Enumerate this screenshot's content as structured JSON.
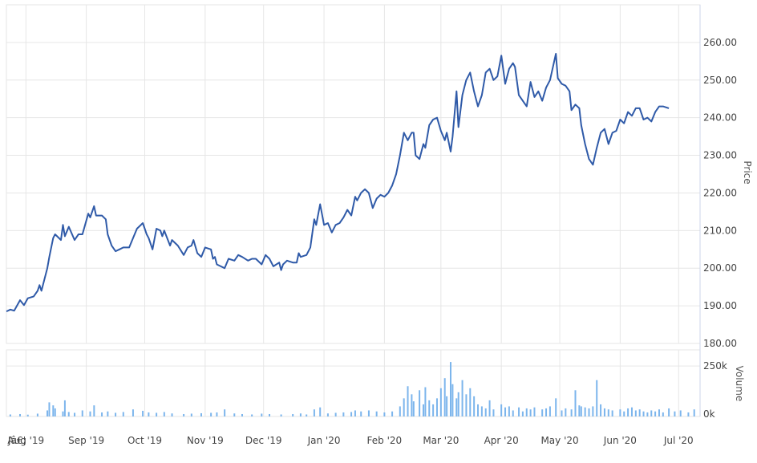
{
  "chart_data": {
    "type": "line",
    "price_axis": {
      "label": "Price",
      "ylim": [
        180,
        270
      ],
      "ticks": [
        180,
        190,
        200,
        210,
        220,
        230,
        240,
        250,
        260
      ],
      "tick_labels": [
        "180.00",
        "190.00",
        "200.00",
        "210.00",
        "220.00",
        "230.00",
        "240.00",
        "250.00",
        "260.00"
      ]
    },
    "volume_axis": {
      "label": "Volume",
      "ylim": [
        0,
        330000
      ],
      "ticks": [
        0,
        250000
      ],
      "tick_labels": [
        "0k",
        "250k"
      ]
    },
    "x_axis": {
      "range": [
        "2019-07-22",
        "2020-07-12"
      ],
      "ticks": [
        {
          "label": "Jâ€¦",
          "date": "2019-07-22"
        },
        {
          "label": "Aug '19",
          "date": "2019-08-01"
        },
        {
          "label": "Sep '19",
          "date": "2019-09-01"
        },
        {
          "label": "Oct '19",
          "date": "2019-10-01"
        },
        {
          "label": "Nov '19",
          "date": "2019-11-01"
        },
        {
          "label": "Dec '19",
          "date": "2019-12-01"
        },
        {
          "label": "Jan '20",
          "date": "2020-01-01"
        },
        {
          "label": "Feb '20",
          "date": "2020-02-01"
        },
        {
          "label": "Mar '20",
          "date": "2020-03-01"
        },
        {
          "label": "Apr '20",
          "date": "2020-04-01"
        },
        {
          "label": "May '20",
          "date": "2020-05-01"
        },
        {
          "label": "Jun '20",
          "date": "2020-06-01"
        },
        {
          "label": "Jul '20",
          "date": "2020-07-01"
        }
      ]
    },
    "grid": true,
    "line_color": "#2f5aa8",
    "volume_color": "#7cb5ec",
    "price_series": [
      [
        "2019-07-22",
        188.5
      ],
      [
        "2019-07-24",
        189
      ],
      [
        "2019-07-26",
        188.7
      ],
      [
        "2019-07-29",
        191.5
      ],
      [
        "2019-07-31",
        190.2
      ],
      [
        "2019-08-02",
        192
      ],
      [
        "2019-08-05",
        192.5
      ],
      [
        "2019-08-07",
        194
      ],
      [
        "2019-08-08",
        195.5
      ],
      [
        "2019-08-09",
        194
      ],
      [
        "2019-08-12",
        200
      ],
      [
        "2019-08-13",
        203
      ],
      [
        "2019-08-15",
        208
      ],
      [
        "2019-08-16",
        209
      ],
      [
        "2019-08-19",
        207.5
      ],
      [
        "2019-08-20",
        211.5
      ],
      [
        "2019-08-21",
        208.5
      ],
      [
        "2019-08-23",
        211
      ],
      [
        "2019-08-26",
        207.5
      ],
      [
        "2019-08-28",
        209
      ],
      [
        "2019-08-30",
        209
      ],
      [
        "2019-09-02",
        214.5
      ],
      [
        "2019-09-03",
        213.5
      ],
      [
        "2019-09-05",
        216.5
      ],
      [
        "2019-09-06",
        214
      ],
      [
        "2019-09-09",
        214
      ],
      [
        "2019-09-11",
        213
      ],
      [
        "2019-09-12",
        209
      ],
      [
        "2019-09-14",
        206
      ],
      [
        "2019-09-16",
        204.5
      ],
      [
        "2019-09-18",
        205
      ],
      [
        "2019-09-20",
        205.5
      ],
      [
        "2019-09-23",
        205.5
      ],
      [
        "2019-09-25",
        208
      ],
      [
        "2019-09-27",
        210.5
      ],
      [
        "2019-09-30",
        212
      ],
      [
        "2019-10-02",
        209
      ],
      [
        "2019-10-03",
        208
      ],
      [
        "2019-10-05",
        205
      ],
      [
        "2019-10-07",
        210.5
      ],
      [
        "2019-10-09",
        210
      ],
      [
        "2019-10-10",
        208.5
      ],
      [
        "2019-10-11",
        210
      ],
      [
        "2019-10-14",
        206
      ],
      [
        "2019-10-15",
        207.5
      ],
      [
        "2019-10-18",
        206
      ],
      [
        "2019-10-21",
        203.5
      ],
      [
        "2019-10-23",
        205.5
      ],
      [
        "2019-10-25",
        206
      ],
      [
        "2019-10-26",
        207.5
      ],
      [
        "2019-10-28",
        204
      ],
      [
        "2019-10-30",
        203
      ],
      [
        "2019-11-01",
        205.5
      ],
      [
        "2019-11-04",
        205
      ],
      [
        "2019-11-05",
        202.5
      ],
      [
        "2019-11-06",
        203
      ],
      [
        "2019-11-07",
        201
      ],
      [
        "2019-11-09",
        200.5
      ],
      [
        "2019-11-11",
        200
      ],
      [
        "2019-11-13",
        202.5
      ],
      [
        "2019-11-16",
        202
      ],
      [
        "2019-11-18",
        203.5
      ],
      [
        "2019-11-20",
        203
      ],
      [
        "2019-11-23",
        202
      ],
      [
        "2019-11-25",
        202.5
      ],
      [
        "2019-11-27",
        202.5
      ],
      [
        "2019-11-30",
        201
      ],
      [
        "2019-12-02",
        203.5
      ],
      [
        "2019-12-04",
        202.5
      ],
      [
        "2019-12-06",
        200.5
      ],
      [
        "2019-12-09",
        201.5
      ],
      [
        "2019-12-10",
        199.5
      ],
      [
        "2019-12-11",
        201
      ],
      [
        "2019-12-13",
        202
      ],
      [
        "2019-12-16",
        201.5
      ],
      [
        "2019-12-18",
        201.5
      ],
      [
        "2019-12-19",
        204
      ],
      [
        "2019-12-20",
        203
      ],
      [
        "2019-12-23",
        203.5
      ],
      [
        "2019-12-25",
        205.5
      ],
      [
        "2019-12-27",
        213
      ],
      [
        "2019-12-28",
        211.5
      ],
      [
        "2019-12-30",
        217
      ],
      [
        "2020-01-01",
        211.5
      ],
      [
        "2020-01-03",
        212
      ],
      [
        "2020-01-05",
        209.5
      ],
      [
        "2020-01-07",
        211.5
      ],
      [
        "2020-01-09",
        212
      ],
      [
        "2020-01-11",
        213.5
      ],
      [
        "2020-01-13",
        215.5
      ],
      [
        "2020-01-15",
        214
      ],
      [
        "2020-01-17",
        219
      ],
      [
        "2020-01-18",
        218
      ],
      [
        "2020-01-20",
        220
      ],
      [
        "2020-01-22",
        221
      ],
      [
        "2020-01-24",
        220
      ],
      [
        "2020-01-26",
        216
      ],
      [
        "2020-01-28",
        218.5
      ],
      [
        "2020-01-30",
        219.5
      ],
      [
        "2020-02-01",
        219
      ],
      [
        "2020-02-03",
        220
      ],
      [
        "2020-02-05",
        222
      ],
      [
        "2020-02-07",
        225
      ],
      [
        "2020-02-09",
        230
      ],
      [
        "2020-02-11",
        236
      ],
      [
        "2020-02-13",
        234
      ],
      [
        "2020-02-15",
        236
      ],
      [
        "2020-02-16",
        236
      ],
      [
        "2020-02-17",
        230
      ],
      [
        "2020-02-19",
        229
      ],
      [
        "2020-02-21",
        233
      ],
      [
        "2020-02-22",
        232
      ],
      [
        "2020-02-24",
        238
      ],
      [
        "2020-02-26",
        239.5
      ],
      [
        "2020-02-28",
        240
      ],
      [
        "2020-03-01",
        236.5
      ],
      [
        "2020-03-03",
        234
      ],
      [
        "2020-03-04",
        236
      ],
      [
        "2020-03-06",
        231
      ],
      [
        "2020-03-07",
        235
      ],
      [
        "2020-03-09",
        247
      ],
      [
        "2020-03-10",
        237.5
      ],
      [
        "2020-03-12",
        246
      ],
      [
        "2020-03-14",
        250
      ],
      [
        "2020-03-16",
        252
      ],
      [
        "2020-03-18",
        247
      ],
      [
        "2020-03-20",
        243
      ],
      [
        "2020-03-22",
        246
      ],
      [
        "2020-03-24",
        252
      ],
      [
        "2020-03-26",
        253
      ],
      [
        "2020-03-28",
        250
      ],
      [
        "2020-03-30",
        251
      ],
      [
        "2020-04-01",
        256.5
      ],
      [
        "2020-04-03",
        249
      ],
      [
        "2020-04-05",
        253
      ],
      [
        "2020-04-07",
        254.5
      ],
      [
        "2020-04-08",
        253.5
      ],
      [
        "2020-04-10",
        246
      ],
      [
        "2020-04-12",
        244.5
      ],
      [
        "2020-04-14",
        243
      ],
      [
        "2020-04-16",
        249.5
      ],
      [
        "2020-04-18",
        245.5
      ],
      [
        "2020-04-20",
        247
      ],
      [
        "2020-04-22",
        244.5
      ],
      [
        "2020-04-24",
        248
      ],
      [
        "2020-04-26",
        250
      ],
      [
        "2020-04-29",
        257
      ],
      [
        "2020-04-30",
        250.5
      ],
      [
        "2020-05-02",
        249
      ],
      [
        "2020-05-04",
        248.5
      ],
      [
        "2020-05-06",
        247
      ],
      [
        "2020-05-07",
        242
      ],
      [
        "2020-05-09",
        243.5
      ],
      [
        "2020-05-11",
        242.5
      ],
      [
        "2020-05-12",
        238
      ],
      [
        "2020-05-14",
        233
      ],
      [
        "2020-05-16",
        229
      ],
      [
        "2020-05-18",
        227.5
      ],
      [
        "2020-05-20",
        232
      ],
      [
        "2020-05-22",
        236
      ],
      [
        "2020-05-24",
        237
      ],
      [
        "2020-05-26",
        233
      ],
      [
        "2020-05-28",
        236
      ],
      [
        "2020-05-30",
        236.5
      ],
      [
        "2020-06-01",
        239.5
      ],
      [
        "2020-06-03",
        238.5
      ],
      [
        "2020-06-05",
        241.5
      ],
      [
        "2020-06-07",
        240.5
      ],
      [
        "2020-06-09",
        242.5
      ],
      [
        "2020-06-11",
        242.5
      ],
      [
        "2020-06-13",
        239.5
      ],
      [
        "2020-06-15",
        240
      ],
      [
        "2020-06-17",
        239
      ],
      [
        "2020-06-19",
        241.5
      ],
      [
        "2020-06-21",
        243
      ],
      [
        "2020-06-23",
        243
      ],
      [
        "2020-06-26",
        242.5
      ]
    ],
    "volume_series": [
      [
        "2019-07-24",
        10000
      ],
      [
        "2019-07-29",
        12000
      ],
      [
        "2019-08-02",
        9000
      ],
      [
        "2019-08-07",
        14000
      ],
      [
        "2019-08-12",
        30000
      ],
      [
        "2019-08-13",
        70000
      ],
      [
        "2019-08-15",
        55000
      ],
      [
        "2019-08-16",
        40000
      ],
      [
        "2019-08-20",
        25000
      ],
      [
        "2019-08-21",
        80000
      ],
      [
        "2019-08-23",
        22000
      ],
      [
        "2019-08-26",
        18000
      ],
      [
        "2019-08-30",
        30000
      ],
      [
        "2019-09-03",
        25000
      ],
      [
        "2019-09-05",
        55000
      ],
      [
        "2019-09-09",
        20000
      ],
      [
        "2019-09-12",
        25000
      ],
      [
        "2019-09-16",
        18000
      ],
      [
        "2019-09-20",
        22000
      ],
      [
        "2019-09-25",
        35000
      ],
      [
        "2019-09-30",
        28000
      ],
      [
        "2019-10-03",
        20000
      ],
      [
        "2019-10-07",
        18000
      ],
      [
        "2019-10-11",
        22000
      ],
      [
        "2019-10-15",
        15000
      ],
      [
        "2019-10-21",
        12000
      ],
      [
        "2019-10-25",
        14000
      ],
      [
        "2019-10-30",
        16000
      ],
      [
        "2019-11-04",
        18000
      ],
      [
        "2019-11-07",
        20000
      ],
      [
        "2019-11-11",
        35000
      ],
      [
        "2019-11-16",
        15000
      ],
      [
        "2019-11-20",
        12000
      ],
      [
        "2019-11-25",
        10000
      ],
      [
        "2019-11-30",
        14000
      ],
      [
        "2019-12-04",
        12000
      ],
      [
        "2019-12-10",
        10000
      ],
      [
        "2019-12-16",
        12000
      ],
      [
        "2019-12-20",
        15000
      ],
      [
        "2019-12-23",
        10000
      ],
      [
        "2019-12-27",
        35000
      ],
      [
        "2019-12-30",
        45000
      ],
      [
        "2020-01-03",
        15000
      ],
      [
        "2020-01-07",
        18000
      ],
      [
        "2020-01-11",
        20000
      ],
      [
        "2020-01-15",
        22000
      ],
      [
        "2020-01-17",
        30000
      ],
      [
        "2020-01-20",
        25000
      ],
      [
        "2020-01-24",
        30000
      ],
      [
        "2020-01-28",
        25000
      ],
      [
        "2020-02-01",
        20000
      ],
      [
        "2020-02-05",
        25000
      ],
      [
        "2020-02-09",
        50000
      ],
      [
        "2020-02-11",
        90000
      ],
      [
        "2020-02-13",
        150000
      ],
      [
        "2020-02-15",
        110000
      ],
      [
        "2020-02-16",
        75000
      ],
      [
        "2020-02-19",
        130000
      ],
      [
        "2020-02-21",
        60000
      ],
      [
        "2020-02-22",
        145000
      ],
      [
        "2020-02-24",
        80000
      ],
      [
        "2020-02-26",
        60000
      ],
      [
        "2020-02-28",
        90000
      ],
      [
        "2020-03-01",
        140000
      ],
      [
        "2020-03-03",
        190000
      ],
      [
        "2020-03-04",
        100000
      ],
      [
        "2020-03-06",
        270000
      ],
      [
        "2020-03-07",
        160000
      ],
      [
        "2020-03-09",
        90000
      ],
      [
        "2020-03-10",
        120000
      ],
      [
        "2020-03-12",
        180000
      ],
      [
        "2020-03-14",
        110000
      ],
      [
        "2020-03-16",
        140000
      ],
      [
        "2020-03-18",
        100000
      ],
      [
        "2020-03-20",
        60000
      ],
      [
        "2020-03-22",
        50000
      ],
      [
        "2020-03-24",
        40000
      ],
      [
        "2020-03-26",
        80000
      ],
      [
        "2020-03-28",
        35000
      ],
      [
        "2020-04-01",
        60000
      ],
      [
        "2020-04-03",
        45000
      ],
      [
        "2020-04-05",
        50000
      ],
      [
        "2020-04-07",
        30000
      ],
      [
        "2020-04-10",
        45000
      ],
      [
        "2020-04-12",
        25000
      ],
      [
        "2020-04-14",
        40000
      ],
      [
        "2020-04-16",
        35000
      ],
      [
        "2020-04-18",
        45000
      ],
      [
        "2020-04-22",
        35000
      ],
      [
        "2020-04-24",
        40000
      ],
      [
        "2020-04-26",
        50000
      ],
      [
        "2020-04-29",
        90000
      ],
      [
        "2020-05-02",
        30000
      ],
      [
        "2020-05-04",
        40000
      ],
      [
        "2020-05-07",
        35000
      ],
      [
        "2020-05-09",
        130000
      ],
      [
        "2020-05-11",
        55000
      ],
      [
        "2020-05-12",
        50000
      ],
      [
        "2020-05-14",
        45000
      ],
      [
        "2020-05-16",
        40000
      ],
      [
        "2020-05-18",
        50000
      ],
      [
        "2020-05-20",
        180000
      ],
      [
        "2020-05-22",
        60000
      ],
      [
        "2020-05-24",
        40000
      ],
      [
        "2020-05-26",
        35000
      ],
      [
        "2020-05-28",
        30000
      ],
      [
        "2020-06-01",
        35000
      ],
      [
        "2020-06-03",
        25000
      ],
      [
        "2020-06-05",
        40000
      ],
      [
        "2020-06-07",
        45000
      ],
      [
        "2020-06-09",
        30000
      ],
      [
        "2020-06-11",
        35000
      ],
      [
        "2020-06-13",
        25000
      ],
      [
        "2020-06-15",
        20000
      ],
      [
        "2020-06-17",
        30000
      ],
      [
        "2020-06-19",
        25000
      ],
      [
        "2020-06-21",
        35000
      ],
      [
        "2020-06-23",
        20000
      ],
      [
        "2020-06-26",
        40000
      ],
      [
        "2020-06-29",
        25000
      ],
      [
        "2020-07-02",
        30000
      ],
      [
        "2020-07-06",
        20000
      ],
      [
        "2020-07-09",
        35000
      ]
    ]
  }
}
